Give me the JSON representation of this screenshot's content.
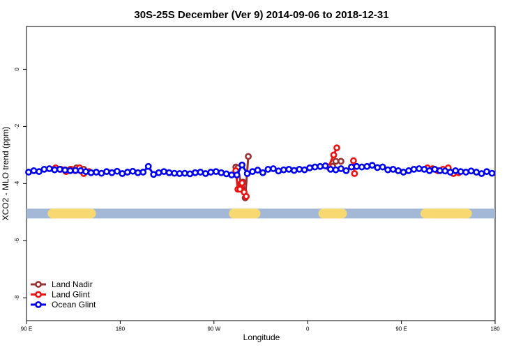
{
  "chart_data": {
    "type": "line",
    "title": "30S-25S December (Ver 9)   2014-09-06 to 2018-12-31",
    "x_label": "Longitude",
    "y_label": "XCO2 - MLO trend (ppm)",
    "xlim": [
      90,
      540
    ],
    "ylim": [
      -8.8,
      1.5
    ],
    "xticks": [
      {
        "value": 90,
        "label": "90 E"
      },
      180,
      {
        "value": 270,
        "label": "90 W"
      },
      {
        "value": 360,
        "label": "0"
      },
      {
        "value": 450,
        "label": "90 E"
      },
      {
        "value": 540,
        "label": "180"
      }
    ],
    "yticks": [
      0,
      -2,
      -4,
      -6,
      -8
    ],
    "legend": "bottom-left",
    "mask": {
      "y": -5.05,
      "sea_color": "#a3b8d6",
      "land_color": "#f8d870",
      "land": [
        [
          115,
          152
        ],
        [
          289,
          310
        ],
        [
          375,
          393
        ],
        [
          473,
          513
        ]
      ]
    },
    "series": [
      {
        "name": "Land Nadir",
        "color": "#993333",
        "x": [
          117,
          122,
          127,
          132,
          138,
          145,
          200,
          291,
          293,
          296,
          298,
          300,
          303,
          350,
          384,
          387,
          392
        ],
        "values": [
          -3.48,
          -3.5,
          -3.52,
          -3.5,
          -3.45,
          -3.5,
          null,
          -3.42,
          -3.45,
          -4.0,
          -3.95,
          -4.5,
          -3.05,
          null,
          -3.4,
          -3.22,
          -3.22
        ]
      },
      {
        "name": "Land Glint",
        "color": "#ee1111",
        "x": [
          118,
          123,
          128,
          133,
          137,
          141,
          145,
          150,
          200,
          291,
          293,
          295,
          297,
          299,
          301,
          350,
          380,
          385,
          388,
          395,
          404,
          405,
          460,
          475,
          480,
          485,
          490,
          495,
          500,
          505
        ],
        "values": [
          -3.45,
          -3.5,
          -3.58,
          -3.5,
          -3.55,
          -3.45,
          -3.65,
          -3.58,
          null,
          -3.55,
          -4.2,
          -4.2,
          -3.98,
          -4.3,
          -4.45,
          null,
          -3.42,
          -3.0,
          -2.75,
          null,
          -3.2,
          -3.65,
          null,
          -3.45,
          -3.48,
          -3.55,
          -3.5,
          -3.45,
          -3.65,
          -3.62
        ]
      },
      {
        "name": "Ocean Glint",
        "color": "#0000ee",
        "x": [
          92,
          97,
          102,
          107,
          112,
          117,
          122,
          127,
          132,
          137,
          142,
          147,
          152,
          157,
          162,
          167,
          172,
          177,
          182,
          187,
          192,
          197,
          202,
          207,
          212,
          217,
          222,
          227,
          232,
          237,
          242,
          247,
          252,
          257,
          262,
          267,
          272,
          277,
          282,
          287,
          292,
          297,
          302,
          307,
          312,
          317,
          322,
          327,
          332,
          337,
          342,
          347,
          352,
          357,
          362,
          367,
          372,
          377,
          382,
          387,
          392,
          397,
          402,
          407,
          412,
          417,
          422,
          427,
          432,
          437,
          442,
          447,
          452,
          457,
          462,
          467,
          472,
          477,
          482,
          487,
          492,
          497,
          502,
          507,
          512,
          517,
          522,
          527,
          532,
          537
        ],
        "values": [
          -3.6,
          -3.55,
          -3.58,
          -3.5,
          -3.48,
          -3.52,
          -3.5,
          -3.53,
          -3.55,
          -3.54,
          -3.55,
          -3.58,
          -3.62,
          -3.6,
          -3.64,
          -3.58,
          -3.62,
          -3.57,
          -3.65,
          -3.6,
          -3.57,
          -3.62,
          -3.6,
          -3.4,
          -3.68,
          -3.62,
          -3.58,
          -3.62,
          -3.64,
          -3.65,
          -3.64,
          -3.66,
          -3.62,
          -3.6,
          -3.65,
          -3.6,
          -3.58,
          -3.62,
          -3.66,
          -3.7,
          -3.7,
          -3.35,
          -3.65,
          -3.58,
          -3.53,
          -3.62,
          -3.5,
          -3.48,
          -3.56,
          -3.52,
          -3.5,
          -3.54,
          -3.5,
          -3.52,
          -3.45,
          -3.42,
          -3.4,
          -3.38,
          -3.5,
          -3.52,
          -3.48,
          -3.55,
          -3.42,
          -3.4,
          -3.42,
          -3.4,
          -3.36,
          -3.44,
          -3.42,
          -3.52,
          -3.5,
          -3.55,
          -3.6,
          -3.55,
          -3.5,
          -3.48,
          -3.5,
          -3.55,
          -3.5,
          -3.55,
          -3.56,
          -3.6,
          -3.55,
          -3.58,
          -3.6,
          -3.56,
          -3.6,
          -3.65,
          -3.58,
          -3.64
        ]
      }
    ]
  }
}
